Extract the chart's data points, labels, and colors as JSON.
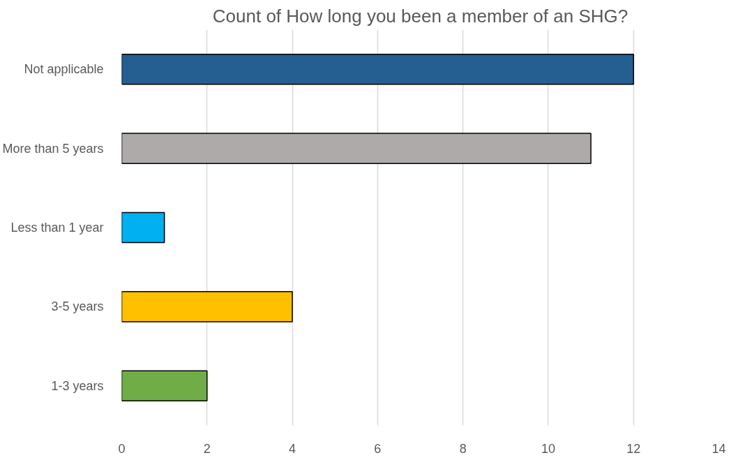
{
  "chart_data": {
    "type": "bar",
    "orientation": "horizontal",
    "title": "Count of How long you been a member of an SHG?",
    "categories": [
      "Not applicable",
      "More than 5 years",
      "Less than 1 year",
      "3-5 years",
      "1-3 years"
    ],
    "values": [
      12,
      11,
      1,
      4,
      2
    ],
    "colors": [
      "#255e91",
      "#aeaaaa",
      "#00b0f0",
      "#ffc000",
      "#70ad47"
    ],
    "xlim": [
      0,
      14
    ],
    "xticks": [
      0,
      2,
      4,
      6,
      8,
      10,
      12,
      14
    ],
    "grid": "x"
  }
}
